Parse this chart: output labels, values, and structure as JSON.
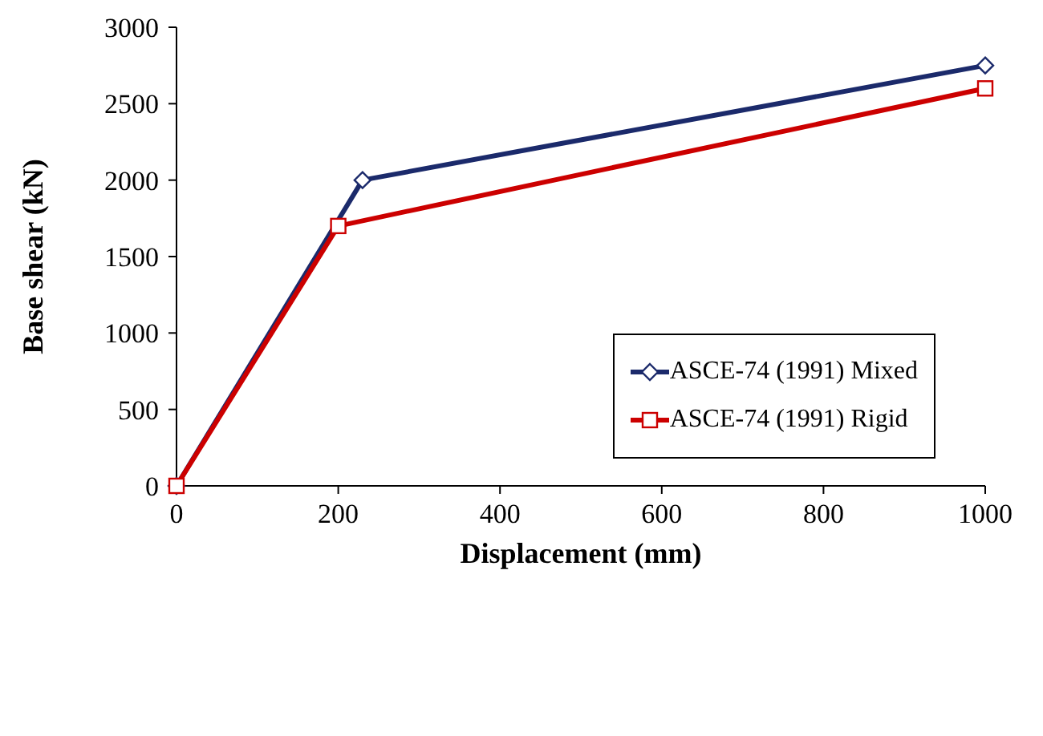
{
  "chart_data": {
    "type": "line",
    "xlabel": "Displacement (mm)",
    "ylabel": "Base shear (kN)",
    "xlim": [
      0,
      1000
    ],
    "xticks": [
      0,
      200,
      400,
      600,
      800,
      1000
    ],
    "ylim": [
      0,
      3000
    ],
    "yticks": [
      0,
      500,
      1000,
      1500,
      2000,
      2500,
      3000
    ],
    "grid": false,
    "legend": "right",
    "line_style": "solid",
    "series": [
      {
        "name": "ASCE-74 (1991) Mixed",
        "color": "#1b2a6b",
        "marker": "diamond",
        "x": [
          0,
          230,
          1000
        ],
        "values": [
          0,
          2000,
          2750
        ]
      },
      {
        "name": "ASCE-74 (1991) Rigid",
        "color": "#cc0000",
        "marker": "square",
        "x": [
          0,
          200,
          1000
        ],
        "values": [
          0,
          1700,
          2600
        ]
      }
    ]
  }
}
